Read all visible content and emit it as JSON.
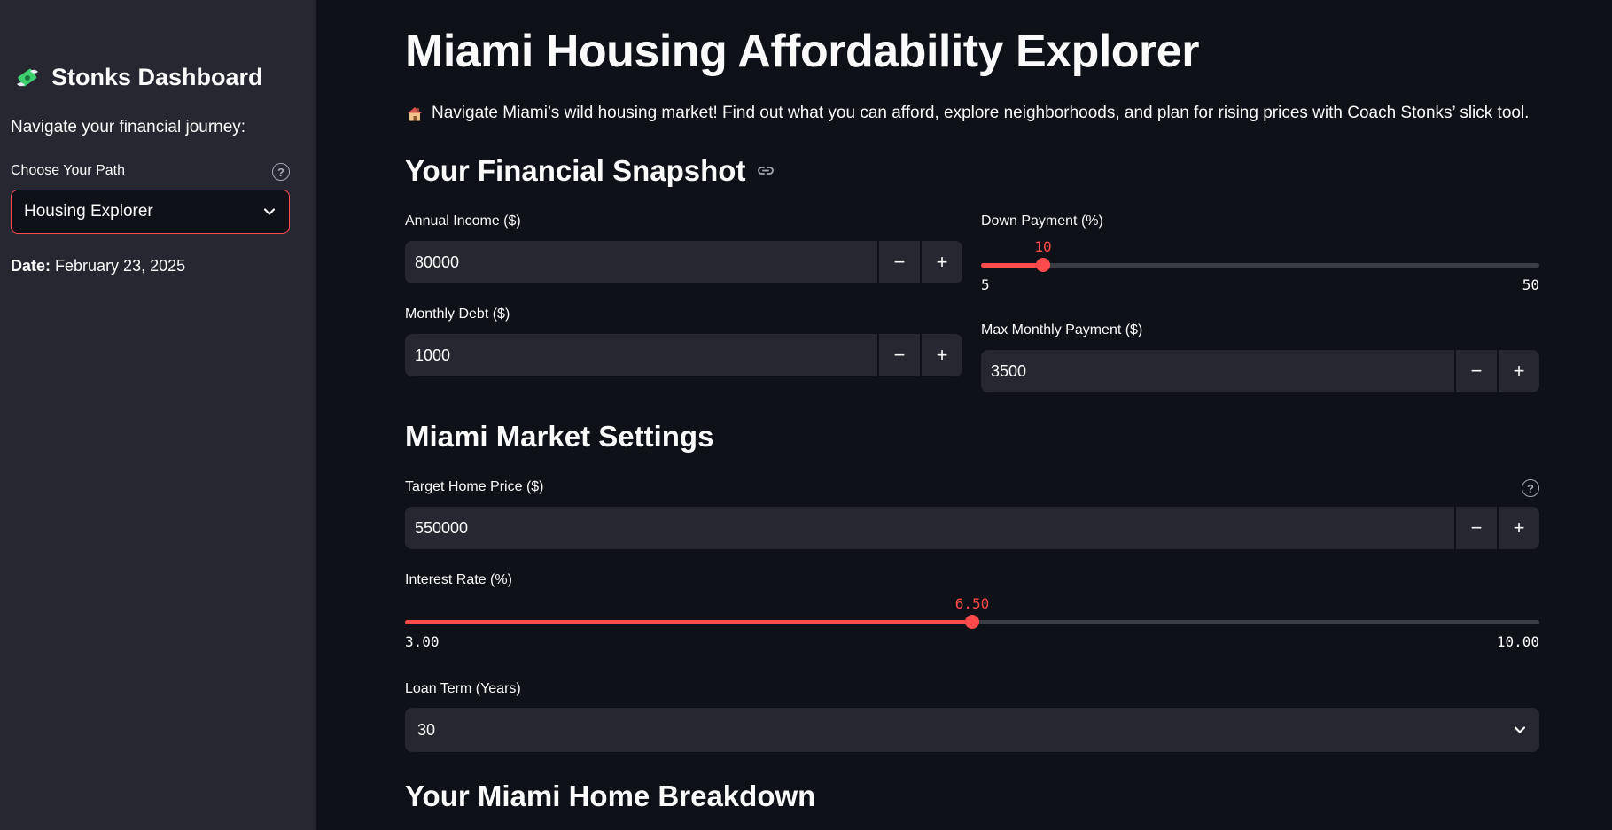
{
  "sidebar": {
    "brand_title": "Stonks Dashboard",
    "brand_icon": "money-with-wings-icon",
    "subtitle": "Navigate your financial journey:",
    "path_label": "Choose Your Path",
    "path_selected": "Housing Explorer",
    "date_label": "Date:",
    "date_value": "February 23, 2025"
  },
  "main": {
    "title": "Miami Housing Affordability Explorer",
    "intro_icon": "house-icon",
    "intro": "Navigate Miami’s wild housing market! Find out what you can afford, explore neighborhoods, and plan for rising prices with Coach Stonks’ slick tool.",
    "snapshot": {
      "heading": "Your Financial Snapshot",
      "annual_income_label": "Annual Income ($)",
      "annual_income_value": "80000",
      "monthly_debt_label": "Monthly Debt ($)",
      "monthly_debt_value": "1000",
      "down_payment_label": "Down Payment (%)",
      "down_payment_value": "10",
      "down_payment_min": "5",
      "down_payment_max": "50",
      "down_payment_fraction": 0.1111,
      "max_payment_label": "Max Monthly Payment ($)",
      "max_payment_value": "3500"
    },
    "market": {
      "heading": "Miami Market Settings",
      "home_price_label": "Target Home Price ($)",
      "home_price_value": "550000",
      "interest_label": "Interest Rate (%)",
      "interest_value": "6.50",
      "interest_min": "3.00",
      "interest_max": "10.00",
      "interest_fraction": 0.5,
      "loan_term_label": "Loan Term (Years)",
      "loan_term_value": "30"
    },
    "breakdown_heading": "Your Miami Home Breakdown"
  },
  "stepper": {
    "minus": "−",
    "plus": "+"
  },
  "colors": {
    "accent": "#ff4b4b",
    "background": "#0e1117",
    "sidebar": "#262730",
    "input": "#262730"
  }
}
